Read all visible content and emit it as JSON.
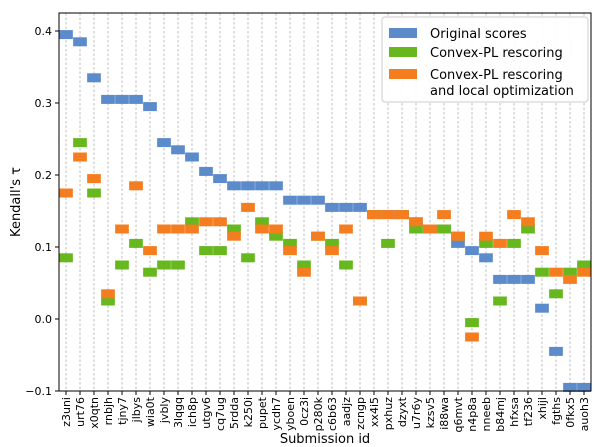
{
  "chart_data": {
    "type": "scatter",
    "xlabel": "Submission id",
    "ylabel": "Kendall's τ",
    "ylim": [
      -0.1,
      0.425
    ],
    "yticks": [
      "−0.1",
      "0.0",
      "0.1",
      "0.2",
      "0.3",
      "0.4"
    ],
    "ytick_values": [
      -0.1,
      0.0,
      0.1,
      0.2,
      0.3,
      0.4
    ],
    "grid": "x-dashed",
    "legend_position": "top-right",
    "categories": [
      "z3uni",
      "urt76",
      "x0qtn",
      "rnbjh",
      "tjny7",
      "jlbys",
      "wia0t",
      "jvbly",
      "3lqgq",
      "ich8p",
      "utgv6",
      "cq7ug",
      "5rdda",
      "k250i",
      "pupet",
      "ycdh7",
      "yboen",
      "0cz3i",
      "p280k",
      "c6b63",
      "aadjz",
      "zcngp",
      "xx4i5",
      "pxhuz",
      "dzyxt",
      "u7r6y",
      "kzsv5",
      "i88wa",
      "q6mvt",
      "n4p8a",
      "nneeb",
      "b84mj",
      "hfxsa",
      "tf236",
      "xhijl",
      "fgths",
      "0fkx5",
      "auoh3"
    ],
    "series": [
      {
        "name": "Original scores",
        "color": "#5b8bcb",
        "values": [
          0.395,
          0.385,
          0.335,
          0.305,
          0.305,
          0.305,
          0.295,
          0.245,
          0.235,
          0.225,
          0.205,
          0.195,
          0.185,
          0.185,
          0.185,
          0.185,
          0.165,
          0.165,
          0.165,
          0.155,
          0.155,
          0.155,
          0.145,
          0.145,
          0.145,
          0.135,
          0.125,
          0.125,
          0.105,
          0.095,
          0.085,
          0.055,
          0.055,
          0.055,
          0.015,
          -0.045,
          -0.095,
          -0.095
        ]
      },
      {
        "name": "Convex-PL rescoring",
        "color": "#66b81e",
        "values": [
          0.085,
          0.245,
          0.175,
          0.025,
          0.075,
          0.105,
          0.065,
          0.075,
          0.075,
          0.135,
          0.095,
          0.095,
          0.125,
          0.085,
          0.135,
          0.115,
          0.105,
          0.075,
          0.115,
          0.105,
          0.075,
          0.025,
          0.145,
          0.105,
          0.145,
          0.125,
          0.125,
          0.125,
          0.115,
          -0.005,
          0.105,
          0.025,
          0.105,
          0.125,
          0.065,
          0.035,
          0.065,
          0.075
        ]
      },
      {
        "name": "Convex-PL rescoring\nand local optimization",
        "color": "#f47d20",
        "values": [
          0.175,
          0.225,
          0.195,
          0.035,
          0.125,
          0.185,
          0.095,
          0.125,
          0.125,
          0.125,
          0.135,
          0.135,
          0.115,
          0.155,
          0.125,
          0.125,
          0.095,
          0.065,
          0.115,
          0.095,
          0.125,
          0.025,
          0.145,
          0.145,
          0.145,
          0.135,
          0.125,
          0.145,
          0.115,
          -0.025,
          0.115,
          0.105,
          0.145,
          0.135,
          0.095,
          0.065,
          0.055,
          0.065
        ]
      }
    ]
  }
}
